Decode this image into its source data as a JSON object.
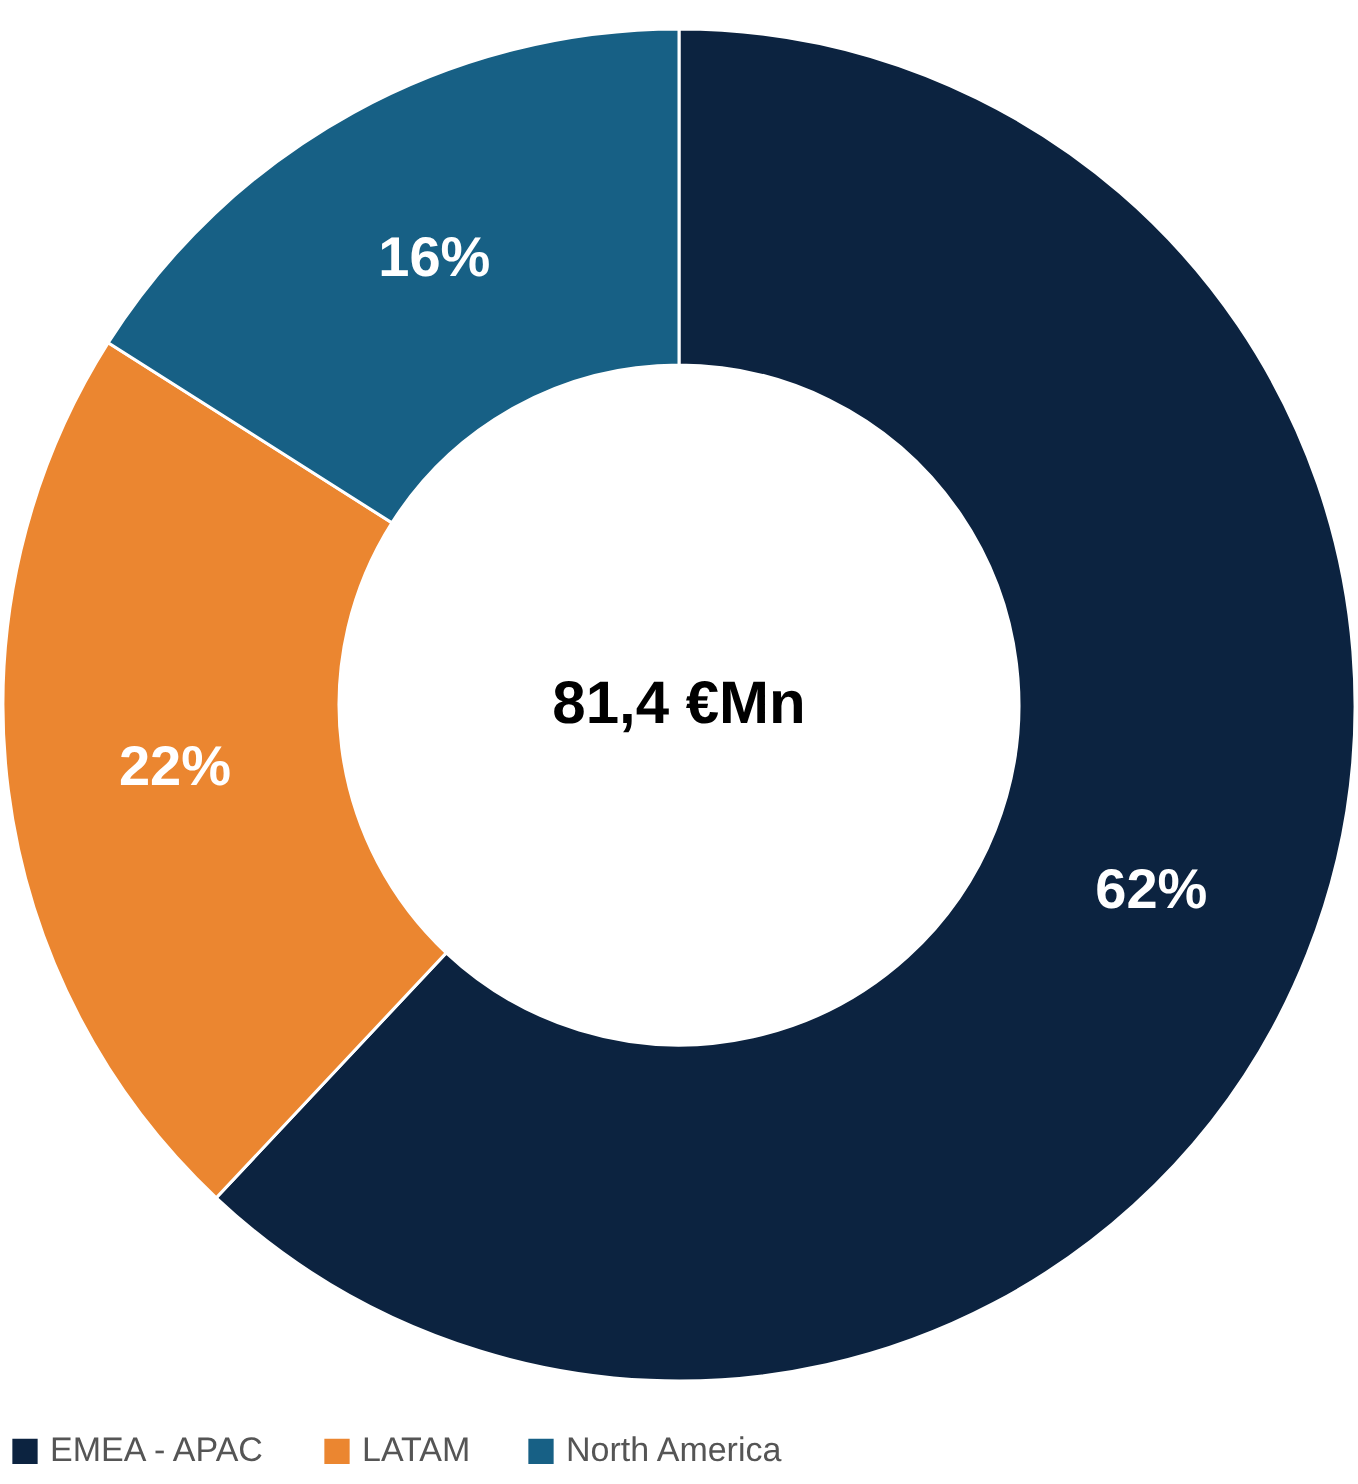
{
  "chart_data": {
    "type": "donut",
    "categories": [
      "EMEA - APAC",
      "LATAM",
      "North America"
    ],
    "values": [
      62,
      22,
      16
    ],
    "value_labels": [
      "62%",
      "22%",
      "16%"
    ],
    "colors": [
      "#0c2340",
      "#eb8630",
      "#176085"
    ],
    "annotations": [
      "81,4 €Mn"
    ],
    "legend": "bottom"
  }
}
